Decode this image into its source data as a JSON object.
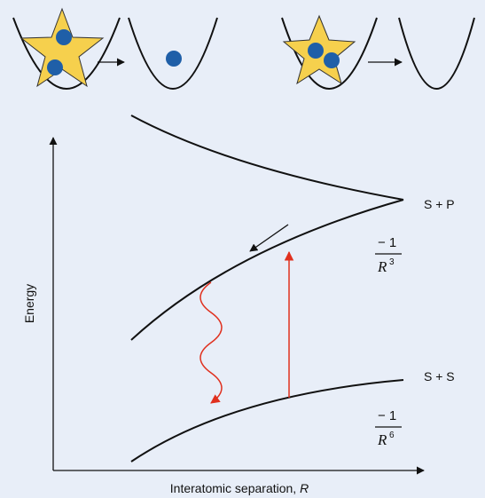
{
  "y_axis_label": "Energy",
  "x_axis_label": {
    "text": "Interatomic separation, ",
    "variable": "R"
  },
  "upper_asymptote": "S + P",
  "lower_asymptote": "S + S",
  "upper_potential": {
    "numerator": "− 1",
    "base": "R",
    "exponent": "3"
  },
  "lower_potential": {
    "numerator": "− 1",
    "base": "R",
    "exponent": "6"
  }
}
